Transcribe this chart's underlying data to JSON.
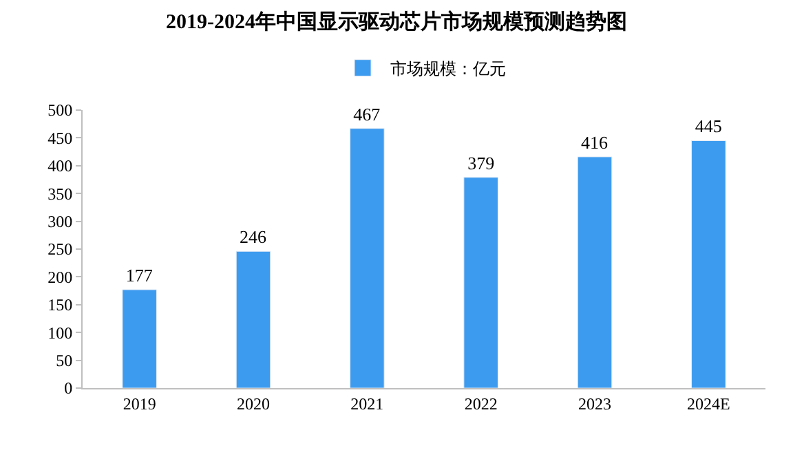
{
  "chart_data": {
    "type": "bar",
    "title": "2019-2024年中国显示驱动芯片市场规模预测趋势图",
    "categories": [
      "2019",
      "2020",
      "2021",
      "2022",
      "2023",
      "2024E"
    ],
    "series": [
      {
        "name": "市场规模：亿元",
        "color": "#3d9bef",
        "values": [
          177,
          246,
          467,
          379,
          416,
          445
        ]
      }
    ],
    "ylim": [
      0,
      500
    ],
    "yticks": [
      0,
      50,
      100,
      150,
      200,
      250,
      300,
      350,
      400,
      450,
      500
    ],
    "data_labels": true,
    "legend": "top"
  }
}
